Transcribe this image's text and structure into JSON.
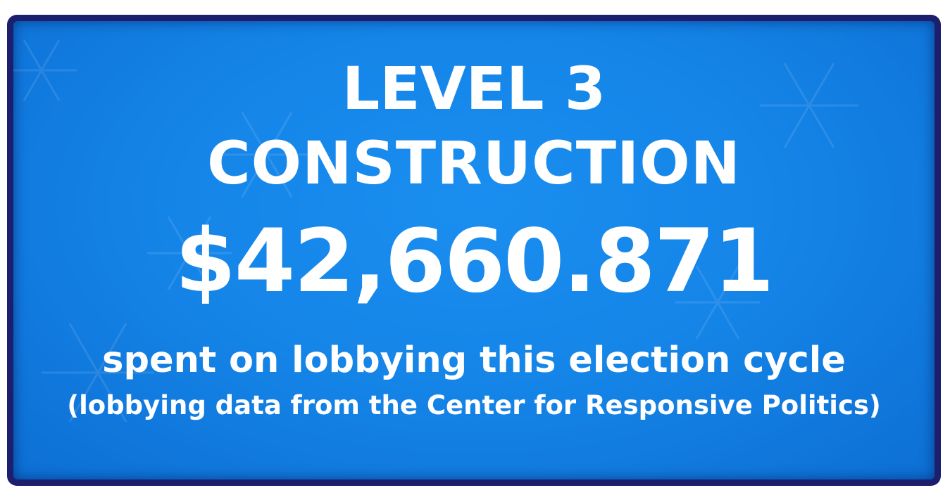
{
  "card": {
    "level": "LEVEL 3",
    "industry": "CONSTRUCTION",
    "amount": "$42,660.871",
    "description": "spent on lobbying this election cycle",
    "source": "(lobbying data from the Center for Responsive Politics)"
  },
  "colors": {
    "background": "#1585e8",
    "border": "#1c1e6e",
    "text": "#ffffff"
  }
}
